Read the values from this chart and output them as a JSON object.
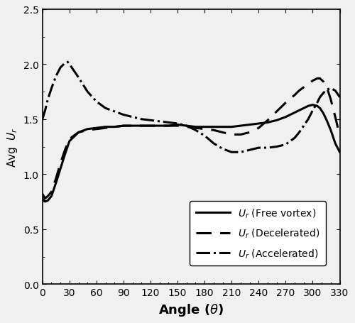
{
  "title": "",
  "xlabel": "Angle (θ)",
  "ylabel": "Avg  $U_r$",
  "xlim": [
    0,
    330
  ],
  "ylim": [
    0,
    2.5
  ],
  "xticks": [
    0,
    30,
    60,
    90,
    120,
    150,
    180,
    210,
    240,
    270,
    300,
    330
  ],
  "yticks": [
    0,
    0.5,
    1.0,
    1.5,
    2.0,
    2.5
  ],
  "background_color": "#f0f0f0",
  "free_vortex_x": [
    0,
    3,
    6,
    10,
    15,
    20,
    25,
    30,
    40,
    50,
    60,
    70,
    80,
    90,
    100,
    110,
    120,
    130,
    140,
    150,
    160,
    170,
    180,
    190,
    200,
    210,
    220,
    230,
    240,
    250,
    260,
    270,
    280,
    285,
    290,
    295,
    300,
    305,
    308,
    312,
    316,
    320,
    325,
    330
  ],
  "free_vortex_y": [
    0.78,
    0.75,
    0.76,
    0.8,
    0.92,
    1.05,
    1.18,
    1.3,
    1.38,
    1.41,
    1.42,
    1.43,
    1.43,
    1.44,
    1.44,
    1.44,
    1.44,
    1.44,
    1.44,
    1.45,
    1.44,
    1.43,
    1.43,
    1.43,
    1.43,
    1.43,
    1.44,
    1.45,
    1.46,
    1.47,
    1.49,
    1.52,
    1.56,
    1.58,
    1.6,
    1.62,
    1.63,
    1.62,
    1.6,
    1.55,
    1.48,
    1.4,
    1.28,
    1.2
  ],
  "decelerated_x": [
    0,
    3,
    6,
    10,
    15,
    20,
    25,
    30,
    40,
    50,
    60,
    70,
    80,
    90,
    100,
    110,
    120,
    130,
    140,
    150,
    160,
    170,
    180,
    190,
    200,
    210,
    220,
    230,
    240,
    250,
    260,
    270,
    280,
    285,
    290,
    295,
    300,
    305,
    308,
    312,
    316,
    320,
    325,
    330
  ],
  "decelerated_y": [
    0.82,
    0.78,
    0.8,
    0.84,
    0.96,
    1.1,
    1.22,
    1.32,
    1.38,
    1.4,
    1.41,
    1.42,
    1.43,
    1.44,
    1.44,
    1.44,
    1.44,
    1.44,
    1.44,
    1.44,
    1.43,
    1.42,
    1.41,
    1.4,
    1.38,
    1.36,
    1.36,
    1.38,
    1.42,
    1.49,
    1.57,
    1.65,
    1.72,
    1.76,
    1.79,
    1.82,
    1.85,
    1.87,
    1.87,
    1.84,
    1.78,
    1.68,
    1.52,
    1.35
  ],
  "accelerated_x": [
    0,
    3,
    6,
    10,
    15,
    20,
    25,
    28,
    30,
    40,
    50,
    60,
    70,
    80,
    90,
    100,
    110,
    120,
    130,
    140,
    150,
    155,
    160,
    170,
    180,
    190,
    200,
    210,
    220,
    230,
    240,
    250,
    260,
    270,
    280,
    285,
    290,
    295,
    300,
    305,
    308,
    312,
    316,
    320,
    325,
    330
  ],
  "accelerated_y": [
    1.5,
    1.58,
    1.68,
    1.78,
    1.89,
    1.97,
    2.01,
    2.02,
    2.0,
    1.88,
    1.75,
    1.66,
    1.6,
    1.57,
    1.54,
    1.52,
    1.5,
    1.49,
    1.48,
    1.47,
    1.46,
    1.45,
    1.44,
    1.4,
    1.35,
    1.28,
    1.23,
    1.2,
    1.2,
    1.22,
    1.24,
    1.24,
    1.25,
    1.27,
    1.33,
    1.38,
    1.44,
    1.5,
    1.58,
    1.65,
    1.7,
    1.74,
    1.77,
    1.78,
    1.76,
    1.7
  ],
  "legend_labels": [
    "$U_r$ (Free vortex)",
    "$U_r$ (Decelerated)",
    "$U_r$ (Accelerated)"
  ],
  "line_color": "#000000",
  "line_width": 2.2
}
